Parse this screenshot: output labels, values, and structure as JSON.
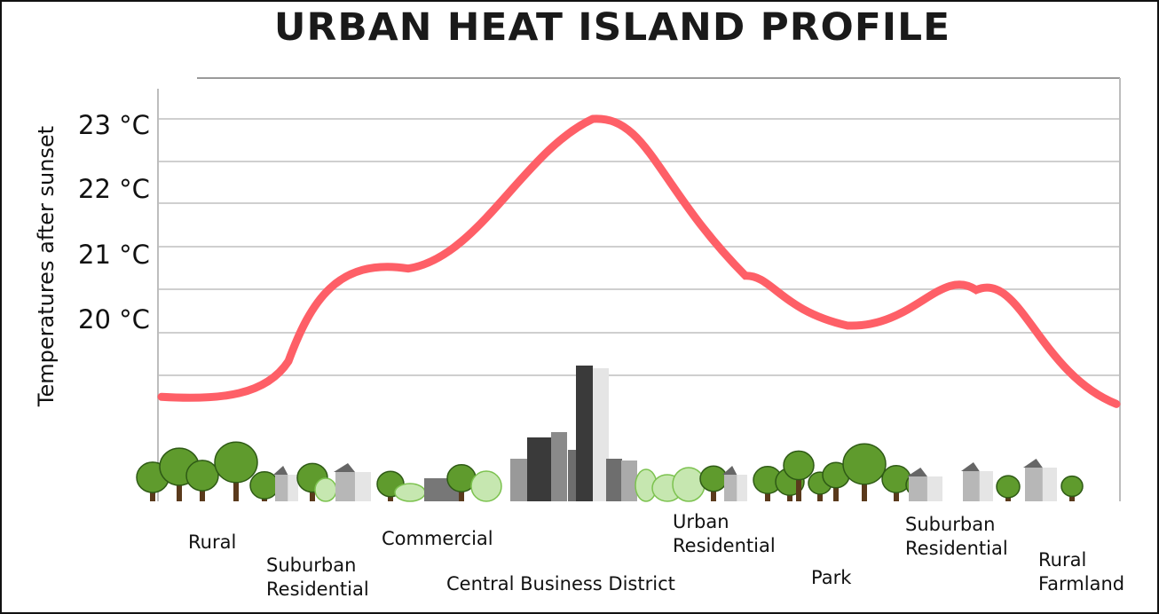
{
  "title": "URBAN HEAT ISLAND PROFILE",
  "chart_data": {
    "type": "line",
    "title": "URBAN HEAT ISLAND PROFILE",
    "xlabel": "",
    "ylabel": "Temperatures after sunset",
    "ytick_labels": [
      "20 °C",
      "21 °C",
      "22 °C",
      "23 °C"
    ],
    "ylim": [
      19,
      23.2
    ],
    "grid": true,
    "series": [
      {
        "color": "#fe5f67",
        "points": [
          {
            "zone": "Rural",
            "value": 19.1
          },
          {
            "zone": "Suburban Residential",
            "value": 19.6
          },
          {
            "zone": "Commercial",
            "value": 20.9
          },
          {
            "zone": "Central Business District",
            "value": 23.0
          },
          {
            "zone": "Urban Residential",
            "value": 20.8
          },
          {
            "zone": "Park",
            "value": 20.1
          },
          {
            "zone": "Suburban Residential",
            "value": 20.6
          },
          {
            "zone": "Rural Farmland",
            "value": 19.0
          }
        ]
      }
    ],
    "zones": [
      {
        "lines": [
          "Rural"
        ]
      },
      {
        "lines": [
          "Suburban",
          "Residential"
        ]
      },
      {
        "lines": [
          "Commercial"
        ]
      },
      {
        "lines": [
          "Central Business District"
        ]
      },
      {
        "lines": [
          "Urban",
          "Residential"
        ]
      },
      {
        "lines": [
          "Park"
        ]
      },
      {
        "lines": [
          "Suburban",
          "Residential"
        ]
      },
      {
        "lines": [
          "Rural",
          "Farmland"
        ]
      }
    ]
  },
  "colors": {
    "curve": "#fe5f67",
    "grid": "#cfcfcf",
    "tree_canopy": "#5f9b2d",
    "tree_trunk": "#5a3a1c",
    "shrub": "#c6e7b0",
    "building_dark": "#3a3a3a",
    "building_light": "#e5e5e5"
  }
}
